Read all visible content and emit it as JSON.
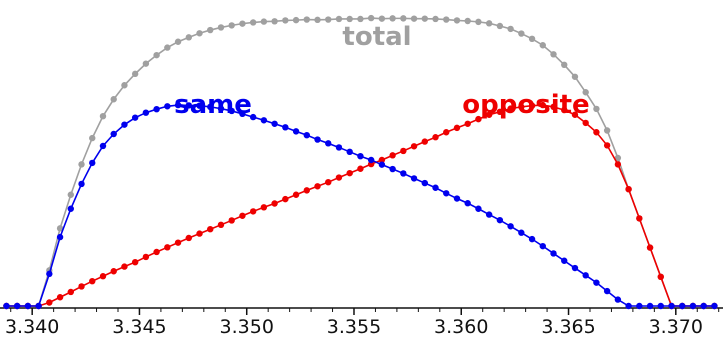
{
  "chart_data": {
    "type": "line",
    "title": "",
    "xlabel": "",
    "ylabel": "",
    "xlim": [
      3.3385,
      3.3722
    ],
    "ylim": [
      0,
      1.0
    ],
    "grid": false,
    "x_ticks": [
      3.34,
      3.345,
      3.35,
      3.355,
      3.36,
      3.365,
      3.37
    ],
    "x_tick_labels": [
      "3.340",
      "3.345",
      "3.350",
      "3.355",
      "3.360",
      "3.365",
      "3.370"
    ],
    "x_start": 3.3388,
    "x_end": 3.372,
    "dx": 0.0005,
    "series": [
      {
        "name": "same",
        "color": "#0000ee",
        "values": [
          0,
          0,
          0,
          0,
          0.11,
          0.236,
          0.333,
          0.418,
          0.49,
          0.548,
          0.589,
          0.621,
          0.645,
          0.662,
          0.674,
          0.684,
          0.688,
          0.687,
          0.686,
          0.682,
          0.676,
          0.668,
          0.658,
          0.647,
          0.636,
          0.624,
          0.612,
          0.598,
          0.585,
          0.57,
          0.557,
          0.543,
          0.528,
          0.513,
          0.5,
          0.484,
          0.469,
          0.454,
          0.437,
          0.421,
          0.405,
          0.386,
          0.368,
          0.352,
          0.333,
          0.313,
          0.294,
          0.273,
          0.251,
          0.229,
          0.205,
          0.18,
          0.155,
          0.13,
          0.105,
          0.08,
          0.051,
          0.022,
          0,
          0,
          0,
          0,
          0,
          0,
          0,
          0,
          0
        ]
      },
      {
        "name": "opposite",
        "color": "#ee0000",
        "values": [
          0,
          0,
          0,
          0,
          0.012,
          0.03,
          0.048,
          0.067,
          0.085,
          0.102,
          0.119,
          0.135,
          0.15,
          0.168,
          0.185,
          0.201,
          0.217,
          0.233,
          0.248,
          0.263,
          0.278,
          0.293,
          0.309,
          0.324,
          0.338,
          0.351,
          0.366,
          0.381,
          0.396,
          0.41,
          0.424,
          0.44,
          0.455,
          0.47,
          0.486,
          0.5,
          0.516,
          0.531,
          0.547,
          0.563,
          0.578,
          0.595,
          0.61,
          0.624,
          0.64,
          0.655,
          0.665,
          0.676,
          0.682,
          0.686,
          0.688,
          0.682,
          0.671,
          0.655,
          0.627,
          0.595,
          0.55,
          0.485,
          0.4,
          0.3,
          0.2,
          0.1,
          0,
          0,
          0,
          0,
          0
        ]
      },
      {
        "name": "total",
        "color": "#a0a0a0",
        "values": [
          0,
          0,
          0,
          0,
          0.122,
          0.266,
          0.381,
          0.485,
          0.575,
          0.65,
          0.708,
          0.756,
          0.795,
          0.83,
          0.859,
          0.885,
          0.905,
          0.92,
          0.934,
          0.945,
          0.954,
          0.961,
          0.967,
          0.971,
          0.974,
          0.975,
          0.978,
          0.979,
          0.981,
          0.98,
          0.981,
          0.983,
          0.983,
          0.983,
          0.986,
          0.984,
          0.985,
          0.985,
          0.984,
          0.984,
          0.983,
          0.981,
          0.978,
          0.976,
          0.973,
          0.968,
          0.959,
          0.949,
          0.933,
          0.915,
          0.893,
          0.862,
          0.826,
          0.785,
          0.732,
          0.675,
          0.601,
          0.507,
          0.4,
          0.3,
          0.2,
          0.1,
          0,
          0,
          0,
          0,
          0
        ]
      }
    ]
  }
}
